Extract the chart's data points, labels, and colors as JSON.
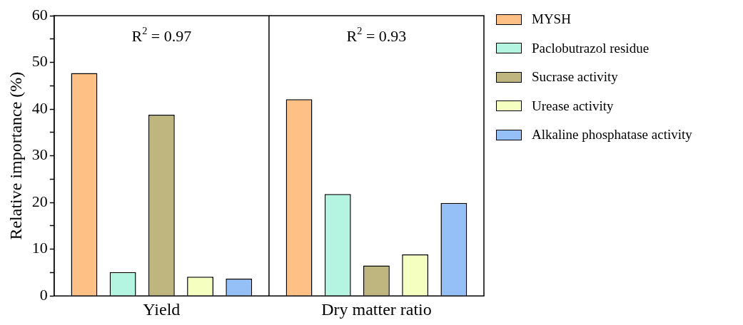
{
  "chart_data": {
    "type": "bar",
    "ylabel": "Relative importance (%)",
    "categories": [
      "Yield",
      "Dry matter ratio"
    ],
    "series": [
      {
        "name": "MYSH",
        "color": "#ffc085",
        "values": [
          47.7,
          42.1
        ]
      },
      {
        "name": "Paclobutrazol residue",
        "color": "#b3f5e0",
        "values": [
          5.1,
          21.8
        ]
      },
      {
        "name": "Sucrase activity",
        "color": "#bfb57f",
        "values": [
          38.8,
          6.5
        ]
      },
      {
        "name": "Urease activity",
        "color": "#f5ffbf",
        "values": [
          4.1,
          8.9
        ]
      },
      {
        "name": "Alkaline phosphatase activity",
        "color": "#94c0f7",
        "values": [
          3.7,
          19.9
        ]
      }
    ],
    "ylim": [
      0,
      60
    ],
    "yticks": [
      0,
      {
        "value": 5,
        "label": null
      },
      10,
      {
        "value": 15,
        "label": null
      },
      20,
      {
        "value": 25,
        "label": null
      },
      30,
      {
        "value": 35,
        "label": null
      },
      40,
      {
        "value": 45,
        "label": null
      },
      50,
      {
        "value": 55,
        "label": null
      },
      60
    ],
    "annotations": [
      "R$^{2}$ = 0.97",
      "R$^{2}$ = 0.93"
    ],
    "grid": false,
    "legend": "right"
  }
}
